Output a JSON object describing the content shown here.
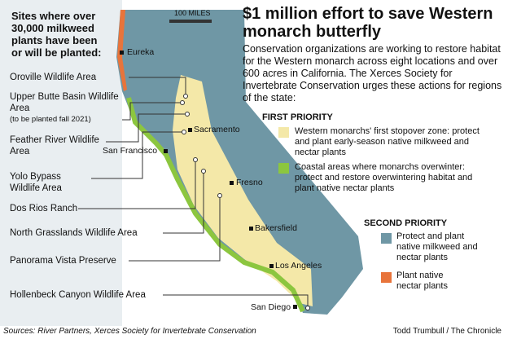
{
  "title": "$1 million effort to save Western monarch butterfly",
  "intro": "Conservation organizations are working to restore habitat for the Western monarch across eight locations and over 600 acres in California. The Xerces Society for Invertebrate Conservation urges these actions for regions of the state:",
  "sites_heading": "Sites where over 30,000 milkweed plants have been or will be planted:",
  "sites": [
    {
      "label": "Oroville Wildlife Area"
    },
    {
      "label": "Upper Butte Basin Wildlife Area",
      "note": "(to be planted fall 2021)"
    },
    {
      "label": "Feather River Wildlife Area"
    },
    {
      "label": "Yolo Bypass Wildlife Area"
    },
    {
      "label": "Dos Rios Ranch"
    },
    {
      "label": "North Grasslands Wildlife Area"
    },
    {
      "label": "Panorama Vista Preserve"
    },
    {
      "label": "Hollenbeck Canyon Wildlife Area"
    }
  ],
  "cities": [
    "Eureka",
    "Sacramento",
    "San Francisco",
    "Fresno",
    "Bakersfield",
    "Los Angeles",
    "San Diego"
  ],
  "scale": "100 MILES",
  "legend": {
    "first_priority": "FIRST PRIORITY",
    "first_items": [
      "Western monarchs' first stopover zone: protect and plant early-season native milkweed and nectar plants",
      "Coastal areas where monarchs overwinter: protect and restore overwintering habitat and plant native nectar plants"
    ],
    "second_priority": "SECOND PRIORITY",
    "second_items": [
      "Protect and plant native milkweed and nectar plants",
      "Plant native nectar plants"
    ]
  },
  "source": "Sources: River Partners, Xerces Society for Invertebrate Conservation",
  "credit": "Todd Trumbull / The Chronicle"
}
